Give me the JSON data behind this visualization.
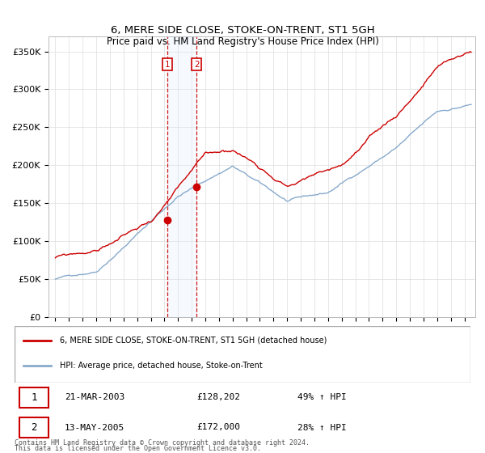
{
  "title": "6, MERE SIDE CLOSE, STOKE-ON-TRENT, ST1 5GH",
  "subtitle": "Price paid vs. HM Land Registry's House Price Index (HPI)",
  "ylim": [
    0,
    370000
  ],
  "yticks": [
    0,
    50000,
    100000,
    150000,
    200000,
    250000,
    300000,
    350000
  ],
  "ytick_labels": [
    "£0",
    "£50K",
    "£100K",
    "£150K",
    "£200K",
    "£250K",
    "£300K",
    "£350K"
  ],
  "sale1_date_num": 2003.22,
  "sale1_price": 128202,
  "sale2_date_num": 2005.36,
  "sale2_price": 172000,
  "red_line_color": "#cc0000",
  "blue_line_color": "#88aacc",
  "shade_color": "#ddeeff",
  "vline_color": "#cc0000",
  "legend_label_red": "6, MERE SIDE CLOSE, STOKE-ON-TRENT, ST1 5GH (detached house)",
  "legend_label_blue": "HPI: Average price, detached house, Stoke-on-Trent",
  "transaction1_label": "1",
  "transaction2_label": "2",
  "transaction1_date": "21-MAR-2003",
  "transaction1_price_str": "£128,202",
  "transaction1_hpi": "49% ↑ HPI",
  "transaction2_date": "13-MAY-2005",
  "transaction2_price_str": "£172,000",
  "transaction2_hpi": "28% ↑ HPI",
  "footer1": "Contains HM Land Registry data © Crown copyright and database right 2024.",
  "footer2": "This data is licensed under the Open Government Licence v3.0."
}
